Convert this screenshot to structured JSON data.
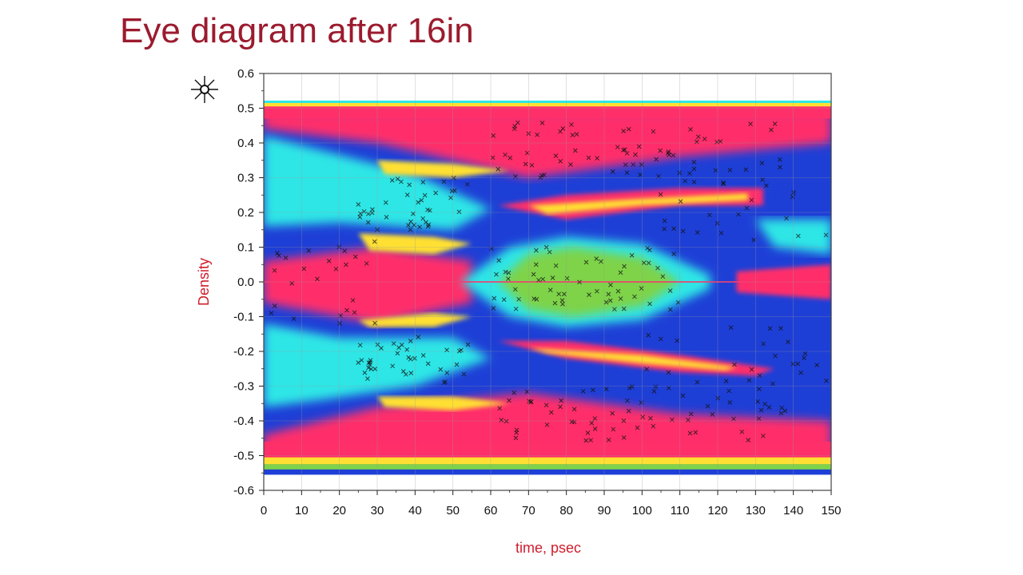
{
  "slide": {
    "title": "Eye diagram after 16in"
  },
  "logo": {
    "icon": "starburst-logo-icon"
  },
  "chart_data": {
    "type": "heatmap",
    "title": "Eye diagram after 16in",
    "xlabel": "time, psec",
    "ylabel": "Density",
    "xlim": [
      0,
      150
    ],
    "ylim": [
      -0.6,
      0.6
    ],
    "x_ticks": [
      0,
      10,
      20,
      30,
      40,
      50,
      60,
      70,
      80,
      90,
      100,
      110,
      120,
      130,
      140,
      150
    ],
    "y_ticks": [
      0.6,
      0.5,
      0.4,
      0.3,
      0.2,
      0.1,
      0.0,
      -0.1,
      -0.2,
      -0.3,
      -0.4,
      -0.5,
      -0.6
    ],
    "y_tick_labels": [
      "0.6",
      "0.5",
      "0.4",
      "0.3",
      "0.2",
      "0.1",
      "0.0",
      "-0.1",
      "-0.2",
      "-0.3",
      "-0.4",
      "-0.5",
      "-0.6"
    ],
    "grid": true,
    "colors": {
      "background_density": "#1e3fd6",
      "low_density": "#2ee6e6",
      "mid_density": "#7ed34a",
      "high_density": "#ff2f6a",
      "peak_density": "#ffe032",
      "marker": "#111111"
    },
    "density_bands": [
      {
        "name": "upper-rail",
        "x": [
          0,
          150
        ],
        "y": 0.5,
        "level": "high"
      },
      {
        "name": "lower-rail",
        "x": [
          0,
          150
        ],
        "y": -0.5,
        "level": "high"
      },
      {
        "name": "center-eye",
        "x": [
          52,
          118
        ],
        "y": 0.0,
        "half_height": 0.13,
        "level": "low"
      },
      {
        "name": "left-upper-lobe",
        "x": [
          0,
          62
        ],
        "y": 0.27,
        "half_height": 0.11,
        "level": "low"
      },
      {
        "name": "left-lower-lobe",
        "x": [
          0,
          62
        ],
        "y": -0.25,
        "half_height": 0.11,
        "level": "low"
      },
      {
        "name": "upper-transition",
        "x": [
          62,
          135
        ],
        "y": 0.22,
        "level": "peak"
      },
      {
        "name": "lower-transition",
        "x": [
          62,
          135
        ],
        "y": -0.21,
        "level": "peak"
      }
    ]
  }
}
